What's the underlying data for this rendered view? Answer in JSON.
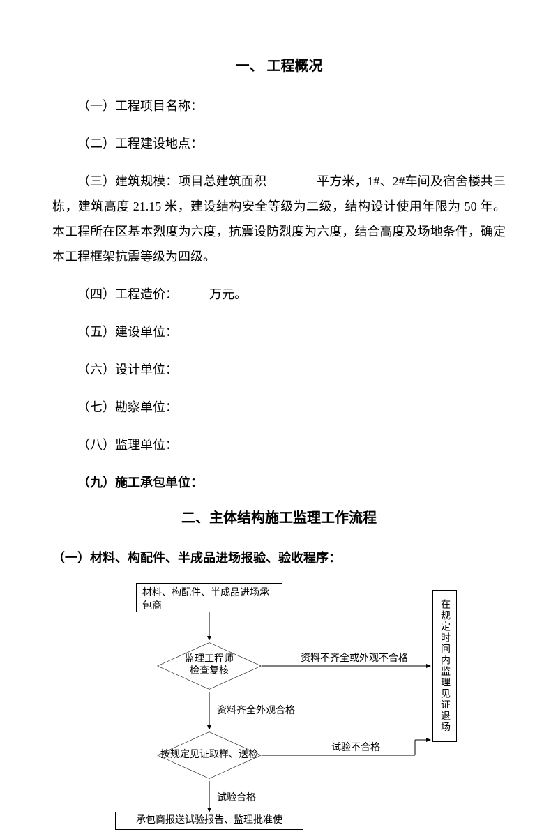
{
  "section1": {
    "title": "一、  工程概况",
    "item1": "（一）工程项目名称：",
    "item2": "（二）工程建设地点：",
    "item3": "（三）建筑规模：项目总建筑面积　　　　平方米，1#、2#车间及宿舍楼共三栋，建筑高度 21.15 米，建设结构安全等级为二级，结构设计使用年限为 50 年。本工程所在区基本烈度为六度，抗震设防烈度为六度，结合高度及场地条件，确定本工程框架抗震等级为四级。",
    "item4": "（四）工程造价：　　　万元。",
    "item5": "（五）建设单位：",
    "item6": "（六）设计单位：",
    "item7": "（七）勘察单位：",
    "item8": "（八）监理单位：",
    "item9": "（九）施工承包单位："
  },
  "section2": {
    "title": "二、主体结构施工监理工作流程",
    "subtitle": "（一）材料、构配件、半成品进场报验、验收程序：",
    "flowchart": {
      "nodes": {
        "n1": "材料、构配件、半成品进场承包商",
        "n2": "监理工程师\n检查复核",
        "n3": "按规定见证取样、送检",
        "n4": "承包商报送试验报告、监理批准使",
        "n5": "在规定时间内监理见证退场"
      },
      "edges": {
        "e1": "资料不齐全或外观不合格",
        "e2": "资料齐全外观合格",
        "e3": "试验不合格",
        "e4": "试验合格"
      },
      "style": {
        "node_border": "#000000",
        "node_bg": "#ffffff",
        "edge_color": "#000000",
        "fontsize_pt": 11
      }
    }
  }
}
